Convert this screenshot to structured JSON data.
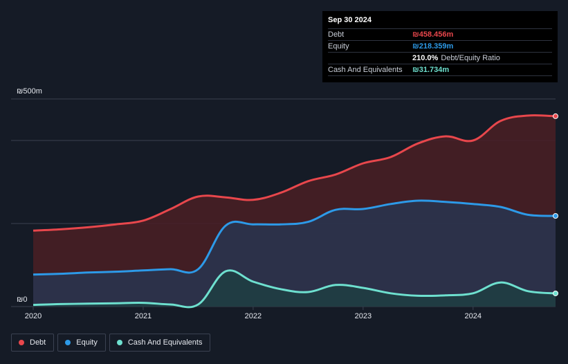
{
  "tooltip": {
    "date": "Sep 30 2024",
    "rows": [
      {
        "label": "Debt",
        "value": "₪458.456m",
        "color": "#e8474c",
        "sub": ""
      },
      {
        "label": "Equity",
        "value": "₪218.359m",
        "color": "#2d9ae8",
        "sub": ""
      },
      {
        "label": "",
        "value": "210.0%",
        "color": "#ffffff",
        "sub": "Debt/Equity Ratio"
      },
      {
        "label": "Cash And Equivalents",
        "value": "₪31.734m",
        "color": "#6ee0cf",
        "sub": ""
      }
    ]
  },
  "legend": [
    {
      "label": "Debt",
      "color": "#e8474c"
    },
    {
      "label": "Equity",
      "color": "#2d9ae8"
    },
    {
      "label": "Cash And Equivalents",
      "color": "#6ee0cf"
    }
  ],
  "chart_data": {
    "type": "area",
    "ylabel_top": "₪500m",
    "ylabel_bottom": "₪0",
    "ylim": [
      0,
      500
    ],
    "xlim": [
      2020.0,
      2024.75
    ],
    "x_ticks": [
      {
        "value": 2020,
        "label": "2020"
      },
      {
        "value": 2021,
        "label": "2021"
      },
      {
        "value": 2022,
        "label": "2022"
      },
      {
        "value": 2023,
        "label": "2023"
      },
      {
        "value": 2024,
        "label": "2024"
      }
    ],
    "grid": true,
    "series": [
      {
        "name": "Debt",
        "color": "#e8474c",
        "fill": "#4a1e25",
        "points": [
          [
            2020.0,
            183
          ],
          [
            2020.25,
            186
          ],
          [
            2020.5,
            191
          ],
          [
            2020.75,
            198
          ],
          [
            2021.0,
            207
          ],
          [
            2021.25,
            235
          ],
          [
            2021.5,
            265
          ],
          [
            2021.75,
            263
          ],
          [
            2022.0,
            257
          ],
          [
            2022.25,
            274
          ],
          [
            2022.5,
            302
          ],
          [
            2022.75,
            318
          ],
          [
            2023.0,
            345
          ],
          [
            2023.25,
            360
          ],
          [
            2023.5,
            393
          ],
          [
            2023.75,
            410
          ],
          [
            2024.0,
            400
          ],
          [
            2024.25,
            447
          ],
          [
            2024.5,
            460
          ],
          [
            2024.75,
            458.456
          ]
        ]
      },
      {
        "name": "Equity",
        "color": "#2d9ae8",
        "fill": "#283550",
        "points": [
          [
            2020.0,
            77
          ],
          [
            2020.25,
            79
          ],
          [
            2020.5,
            82
          ],
          [
            2020.75,
            84
          ],
          [
            2021.0,
            87
          ],
          [
            2021.25,
            90
          ],
          [
            2021.5,
            90
          ],
          [
            2021.75,
            195
          ],
          [
            2022.0,
            198
          ],
          [
            2022.25,
            198
          ],
          [
            2022.5,
            204
          ],
          [
            2022.75,
            233
          ],
          [
            2023.0,
            235
          ],
          [
            2023.25,
            247
          ],
          [
            2023.5,
            255
          ],
          [
            2023.75,
            252
          ],
          [
            2024.0,
            247
          ],
          [
            2024.25,
            240
          ],
          [
            2024.5,
            221
          ],
          [
            2024.75,
            218.359
          ]
        ]
      },
      {
        "name": "Cash And Equivalents",
        "color": "#6ee0cf",
        "fill": "#1f3e42",
        "points": [
          [
            2020.0,
            4
          ],
          [
            2020.25,
            6
          ],
          [
            2020.5,
            7
          ],
          [
            2020.75,
            8
          ],
          [
            2021.0,
            9
          ],
          [
            2021.25,
            5
          ],
          [
            2021.5,
            5
          ],
          [
            2021.75,
            85
          ],
          [
            2022.0,
            60
          ],
          [
            2022.25,
            42
          ],
          [
            2022.5,
            35
          ],
          [
            2022.75,
            52
          ],
          [
            2023.0,
            45
          ],
          [
            2023.25,
            32
          ],
          [
            2023.5,
            26
          ],
          [
            2023.75,
            27
          ],
          [
            2024.0,
            32
          ],
          [
            2024.25,
            58
          ],
          [
            2024.5,
            37
          ],
          [
            2024.75,
            31.734
          ]
        ]
      }
    ]
  }
}
